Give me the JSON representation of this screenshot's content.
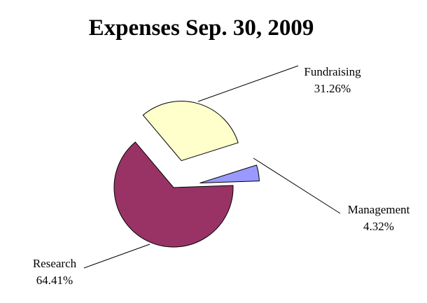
{
  "chart_data": {
    "type": "pie",
    "title": "Expenses Sep. 30, 2009",
    "exploded": true,
    "slices": [
      {
        "name": "Research",
        "value": 64.41,
        "label": "64.41%",
        "color": "#993366"
      },
      {
        "name": "Fundraising",
        "value": 31.26,
        "label": "31.26%",
        "color": "#ffffcc"
      },
      {
        "name": "Management",
        "value": 4.32,
        "label": "4.32%",
        "color": "#9999ff"
      }
    ]
  }
}
